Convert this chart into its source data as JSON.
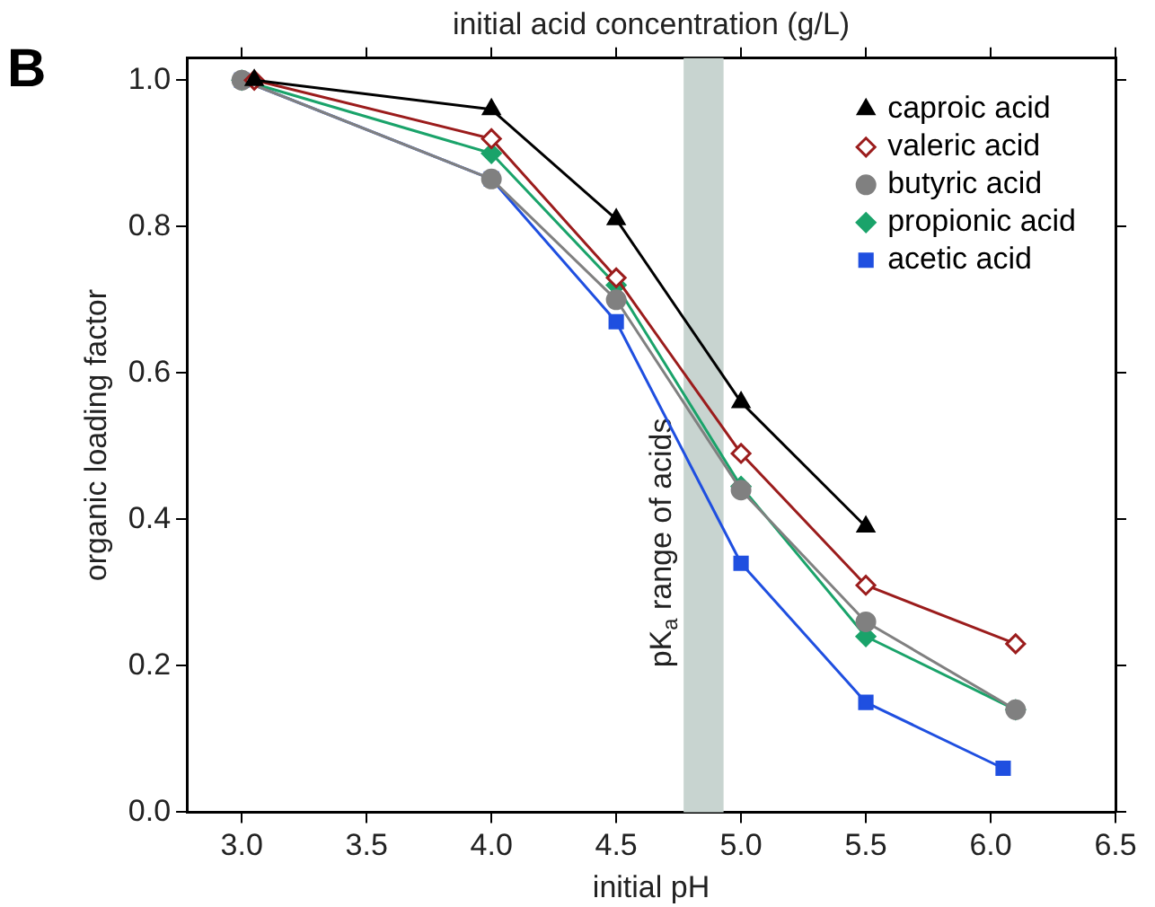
{
  "chart_data": {
    "type": "line",
    "xlabel": "initial pH",
    "ylabel": "organic loading factor",
    "x2label": "initial acid concentration (g/L)",
    "annotations": [
      "B"
    ],
    "xlim": [
      2.78,
      6.5
    ],
    "xticks": [
      {
        "value": 3,
        "label": "3.0"
      },
      {
        "value": 3.5,
        "label": "3.5"
      },
      {
        "value": 4,
        "label": "4.0"
      },
      {
        "value": 4.5,
        "label": "4.5"
      },
      {
        "value": 5,
        "label": "5.0"
      },
      {
        "value": 5.5,
        "label": "5.5"
      },
      {
        "value": 6,
        "label": "6.0"
      },
      {
        "value": 6.5,
        "label": "6.5"
      }
    ],
    "ylim": [
      0,
      1.03
    ],
    "yticks": [
      {
        "value": 0,
        "label": "0.0"
      },
      {
        "value": 0.2,
        "label": "0.2"
      },
      {
        "value": 0.4,
        "label": "0.4"
      },
      {
        "value": 0.6,
        "label": "0.6"
      },
      {
        "value": 0.8,
        "label": "0.8"
      },
      {
        "value": 1,
        "label": "1.0"
      }
    ],
    "grid": false,
    "legend": "top right",
    "bands": [
      {
        "axis": "x",
        "from": 4.77,
        "to": 4.93,
        "label": "pK$_{a}$ range of acids",
        "color": "#c8d4d0"
      }
    ],
    "series": [
      {
        "name": "caproic acid",
        "color": "#000000",
        "marker": "triangle",
        "x": [
          3.05,
          4.0,
          4.5,
          5.0,
          5.5
        ],
        "values": [
          1.0,
          0.96,
          0.81,
          0.56,
          0.39
        ]
      },
      {
        "name": "valeric acid",
        "color": "#9b1c1c",
        "marker": "diamond",
        "x": [
          3.05,
          4.0,
          4.5,
          5.0,
          5.5,
          6.1
        ],
        "values": [
          1.0,
          0.92,
          0.73,
          0.49,
          0.31,
          0.23
        ]
      },
      {
        "name": "butyric acid",
        "color": "#808080",
        "marker": "circle",
        "x": [
          3.0,
          4.0,
          4.5,
          5.0,
          5.5,
          6.1
        ],
        "values": [
          1.0,
          0.865,
          0.7,
          0.44,
          0.26,
          0.14
        ]
      },
      {
        "name": "propionic acid",
        "color": "#1aa36a",
        "marker": "diamond",
        "x": [
          3.0,
          4.0,
          4.5,
          5.0,
          5.5,
          6.1
        ],
        "values": [
          1.0,
          0.9,
          0.72,
          0.445,
          0.24,
          0.14
        ]
      },
      {
        "name": "acetic acid",
        "color": "#1f4fe0",
        "marker": "square",
        "x": [
          3.0,
          4.0,
          4.5,
          5.0,
          5.5,
          6.05
        ],
        "values": [
          1.0,
          0.865,
          0.67,
          0.34,
          0.15,
          0.06
        ]
      }
    ]
  }
}
